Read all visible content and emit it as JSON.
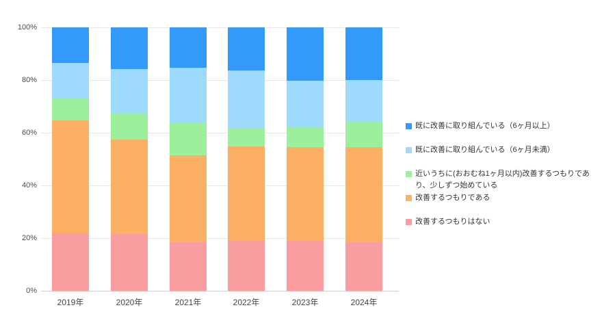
{
  "chart_data": {
    "type": "bar",
    "subtype": "stacked-100-percent",
    "title": "",
    "xlabel": "",
    "ylabel": "",
    "background": "#ffffff",
    "grid": true,
    "grid_color": "#e7e7e7",
    "axis_line_color": "#cccccc",
    "axis_label_color": "#4d4d4d",
    "legend_position": "right",
    "legend_text_color": "#333333",
    "ylim": [
      0,
      100
    ],
    "y_ticks": [
      "100%",
      "80%",
      "60%",
      "40%",
      "20%",
      "0%"
    ],
    "categories": [
      "2019年",
      "2020年",
      "2021年",
      "2022年",
      "2023年",
      "2024年"
    ],
    "series": [
      {
        "name": "既に改善に取り組んでいる（6ヶ月以上）",
        "color": "#3399fa",
        "values": [
          13.5,
          15.8,
          15.3,
          16.3,
          20.3,
          20.1
        ]
      },
      {
        "name": "既に改善に取り組んでいる（6ヶ月未満）",
        "color": "#9edafb",
        "values": [
          13.2,
          16.7,
          21.0,
          21.8,
          17.6,
          15.7
        ]
      },
      {
        "name": "近いうちに(おおむね1ヶ月以内)改善するつもりであり、少しずつ始めている",
        "color": "#9cf09c",
        "values": [
          8.6,
          10.0,
          12.3,
          7.0,
          7.5,
          9.7
        ]
      },
      {
        "name": "改善するつもりである",
        "color": "#fbb065",
        "values": [
          42.9,
          35.9,
          33.0,
          35.8,
          35.7,
          36.1
        ]
      },
      {
        "name": "改善するつもりはない",
        "color": "#f99da0",
        "values": [
          21.8,
          21.6,
          18.4,
          19.1,
          18.9,
          18.4
        ]
      }
    ]
  }
}
